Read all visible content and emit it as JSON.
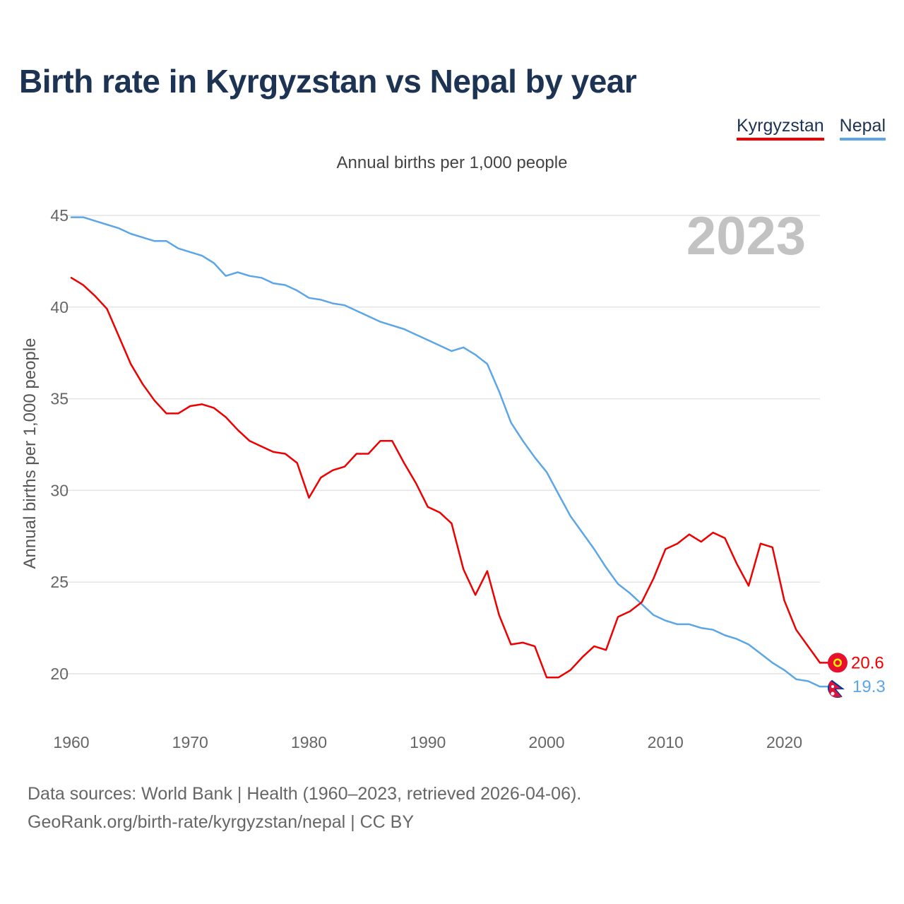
{
  "title": "Birth rate in Kyrgyzstan vs Nepal by year",
  "subtitle": "Annual births per 1,000 people",
  "legend": [
    {
      "label": "Kyrgyzstan",
      "color": "#ee0000"
    },
    {
      "label": "Nepal",
      "color": "#5ca6e8"
    }
  ],
  "footer": {
    "line1": "Data sources: World Bank | Health (1960–2023, retrieved 2026-04-06).",
    "line2": "GeoRank.org/birth-rate/kyrgyzstan/nepal | CC BY"
  },
  "chart_data": {
    "type": "line",
    "title": "Birth rate in Kyrgyzstan vs Nepal by year",
    "ylabel": "Annual births per 1,000 people",
    "xlabel": "",
    "year_label": "2023",
    "xlim": [
      1960,
      2023
    ],
    "ylim": [
      18,
      45.5
    ],
    "x_ticks": [
      1960,
      1970,
      1980,
      1990,
      2000,
      2010,
      2020
    ],
    "y_ticks": [
      20,
      25,
      30,
      35,
      40,
      45
    ],
    "grid": "horizontal",
    "series": [
      {
        "name": "Kyrgyzstan",
        "color": "#ee0000",
        "end_label": "20.6",
        "flag": "kyrgyzstan-flag-icon",
        "x": [
          1960,
          1961,
          1962,
          1963,
          1964,
          1965,
          1966,
          1967,
          1968,
          1969,
          1970,
          1971,
          1972,
          1973,
          1974,
          1975,
          1976,
          1977,
          1978,
          1979,
          1980,
          1981,
          1982,
          1983,
          1984,
          1985,
          1986,
          1987,
          1988,
          1989,
          1990,
          1991,
          1992,
          1993,
          1994,
          1995,
          1996,
          1997,
          1998,
          1999,
          2000,
          2001,
          2002,
          2003,
          2004,
          2005,
          2006,
          2007,
          2008,
          2009,
          2010,
          2011,
          2012,
          2013,
          2014,
          2015,
          2016,
          2017,
          2018,
          2019,
          2020,
          2021,
          2022,
          2023
        ],
        "values": [
          41.6,
          41.2,
          40.6,
          39.9,
          38.4,
          36.9,
          35.8,
          34.9,
          34.2,
          34.2,
          34.6,
          34.7,
          34.5,
          34.0,
          33.3,
          32.7,
          32.4,
          32.1,
          32.0,
          31.5,
          29.6,
          30.7,
          31.1,
          31.3,
          32.0,
          32.0,
          32.7,
          32.7,
          31.5,
          30.4,
          29.1,
          28.8,
          28.2,
          25.7,
          24.3,
          25.6,
          23.2,
          21.6,
          21.7,
          21.5,
          19.8,
          19.8,
          20.2,
          20.9,
          21.5,
          21.3,
          23.1,
          23.4,
          23.9,
          25.2,
          26.8,
          27.1,
          27.6,
          27.2,
          27.7,
          27.4,
          26.0,
          24.8,
          27.1,
          26.9,
          24.0,
          22.4,
          21.5,
          20.6
        ]
      },
      {
        "name": "Nepal",
        "color": "#5ca6e8",
        "end_label": "19.3",
        "flag": "nepal-flag-icon",
        "x": [
          1960,
          1961,
          1962,
          1963,
          1964,
          1965,
          1966,
          1967,
          1968,
          1969,
          1970,
          1971,
          1972,
          1973,
          1974,
          1975,
          1976,
          1977,
          1978,
          1979,
          1980,
          1981,
          1982,
          1983,
          1984,
          1985,
          1986,
          1987,
          1988,
          1989,
          1990,
          1991,
          1992,
          1993,
          1994,
          1995,
          1996,
          1997,
          1998,
          1999,
          2000,
          2001,
          2002,
          2003,
          2004,
          2005,
          2006,
          2007,
          2008,
          2009,
          2010,
          2011,
          2012,
          2013,
          2014,
          2015,
          2016,
          2017,
          2018,
          2019,
          2020,
          2021,
          2022,
          2023
        ],
        "values": [
          44.9,
          44.9,
          44.7,
          44.5,
          44.3,
          44.0,
          43.8,
          43.6,
          43.6,
          43.2,
          43.0,
          42.8,
          42.4,
          41.7,
          41.9,
          41.7,
          41.6,
          41.3,
          41.2,
          40.9,
          40.5,
          40.4,
          40.2,
          40.1,
          39.8,
          39.5,
          39.2,
          39.0,
          38.8,
          38.5,
          38.2,
          37.9,
          37.6,
          37.8,
          37.4,
          36.9,
          35.4,
          33.7,
          32.7,
          31.8,
          31.0,
          29.8,
          28.6,
          27.7,
          26.8,
          25.8,
          24.9,
          24.4,
          23.8,
          23.2,
          22.9,
          22.7,
          22.7,
          22.5,
          22.4,
          22.1,
          21.9,
          21.6,
          21.1,
          20.6,
          20.2,
          19.7,
          19.6,
          19.3
        ]
      }
    ]
  }
}
